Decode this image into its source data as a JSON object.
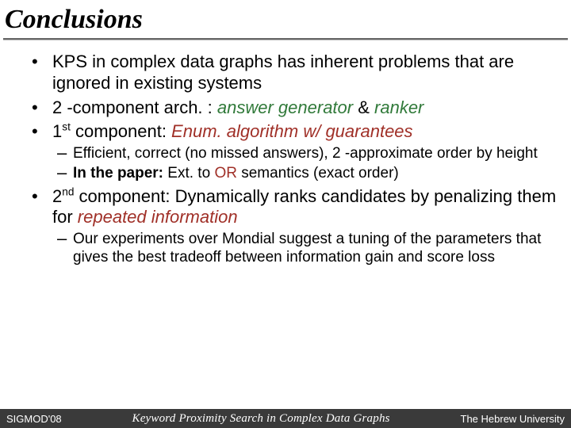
{
  "title": "Conclusions",
  "bullets": {
    "b1": "KPS in complex data graphs has inherent problems that are ignored in existing systems",
    "b2_pre": "2 -component arch. : ",
    "b2_gen": "answer generator",
    "b2_amp": " & ",
    "b2_rank": "ranker",
    "b3_pre": "1",
    "b3_sup": "st",
    "b3_mid": " component: ",
    "b3_red": "Enum. algorithm w/ guarantees",
    "b3_d1": "Efficient, correct (no missed answers), 2 -approximate order by height",
    "b3_d2_bold": "In the paper:",
    "b3_d2_mid": " Ext. to ",
    "b3_d2_or": "OR",
    "b3_d2_tail": " semantics (exact order)",
    "b4_pre": "2",
    "b4_sup": "nd",
    "b4_mid": " component: Dynamically ranks candidates by penalizing them for ",
    "b4_red": "repeated information",
    "b4_d1": "Our experiments over Mondial suggest a tuning of the parameters that gives the best tradeoff between information gain and score loss"
  },
  "footer": {
    "left": "SIGMOD'08",
    "center": "Keyword Proximity Search in Complex Data Graphs",
    "right": "The Hebrew University"
  },
  "colors": {
    "green": "#317a3a",
    "red": "#a03028",
    "footer_bg": "#3a3a3a"
  }
}
